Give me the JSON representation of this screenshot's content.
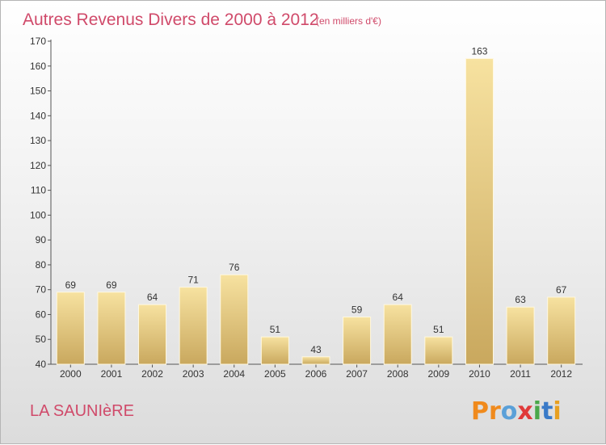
{
  "title": "Autres Revenus Divers de 2000 à 2012",
  "unit": "(en milliers d'€)",
  "commune": "LA SAUNIèRE",
  "logo": {
    "letters": [
      "P",
      "r",
      "o",
      "x",
      "i",
      "t",
      "i"
    ],
    "colors": [
      "#f08a1c",
      "#f08a1c",
      "#5aa0d8",
      "#e03a3a",
      "#4aa84a",
      "#3a7ac8",
      "#e8a020"
    ]
  },
  "colors": {
    "bar_light": "#f7e2a0",
    "bar_dark": "#c9a85e",
    "accent": "#d04a6a"
  },
  "chart_data": {
    "type": "bar",
    "categories": [
      "2000",
      "2001",
      "2002",
      "2003",
      "2004",
      "2005",
      "2006",
      "2007",
      "2008",
      "2009",
      "2010",
      "2011",
      "2012"
    ],
    "values": [
      69,
      69,
      64,
      71,
      76,
      51,
      43,
      59,
      64,
      51,
      163,
      63,
      67
    ],
    "ylim": [
      40,
      170
    ],
    "yticks": [
      40,
      50,
      60,
      70,
      80,
      90,
      100,
      110,
      120,
      130,
      140,
      150,
      160,
      170
    ],
    "grid": false
  }
}
